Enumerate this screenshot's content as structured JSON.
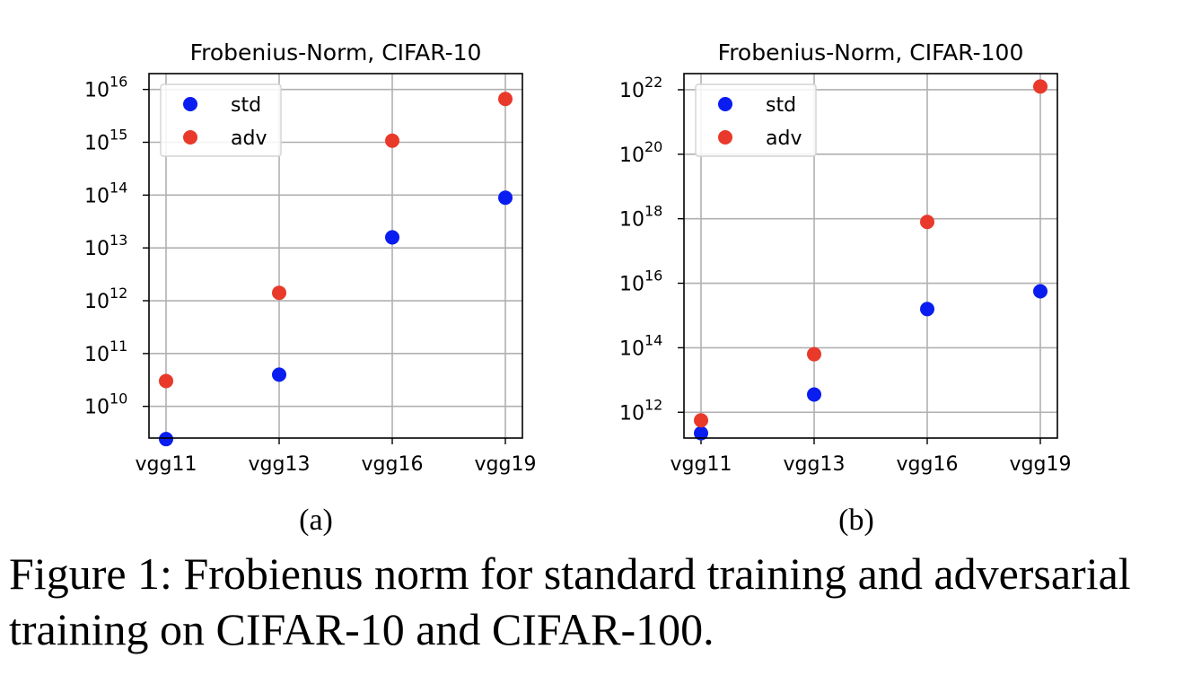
{
  "chart_data": [
    {
      "type": "scatter",
      "title": "Frobenius-Norm, CIFAR-10",
      "panel_label": "(a)",
      "yscale": "log",
      "ylim_exponent": [
        9.4,
        16.3
      ],
      "y_ticks_exponent": [
        10,
        11,
        12,
        13,
        14,
        15,
        16
      ],
      "y_tick_base": "10",
      "categories": [
        "vgg11",
        "vgg13",
        "vgg16",
        "vgg19"
      ],
      "legend_position": "upper-left",
      "series": [
        {
          "name": "std",
          "color": "#0a1df0",
          "values_exponent": [
            9.38,
            10.6,
            13.2,
            13.95
          ]
        },
        {
          "name": "adv",
          "color": "#e8392b",
          "values_exponent": [
            10.48,
            12.15,
            15.03,
            15.82
          ]
        }
      ]
    },
    {
      "type": "scatter",
      "title": "Frobenius-Norm, CIFAR-100",
      "panel_label": "(b)",
      "yscale": "log",
      "ylim_exponent": [
        11.2,
        22.5
      ],
      "y_ticks_exponent": [
        12,
        14,
        16,
        18,
        20,
        22
      ],
      "y_tick_base": "10",
      "categories": [
        "vgg11",
        "vgg13",
        "vgg16",
        "vgg19"
      ],
      "legend_position": "upper-left",
      "series": [
        {
          "name": "std",
          "color": "#0a1df0",
          "values_exponent": [
            11.35,
            12.55,
            15.2,
            15.75
          ]
        },
        {
          "name": "adv",
          "color": "#e8392b",
          "values_exponent": [
            11.75,
            13.8,
            17.9,
            22.1
          ]
        }
      ]
    }
  ],
  "caption": {
    "label": "Figure 1:",
    "text": "Frobienus norm for standard training and adversarial training on CIFAR-10 and CIFAR-100."
  }
}
